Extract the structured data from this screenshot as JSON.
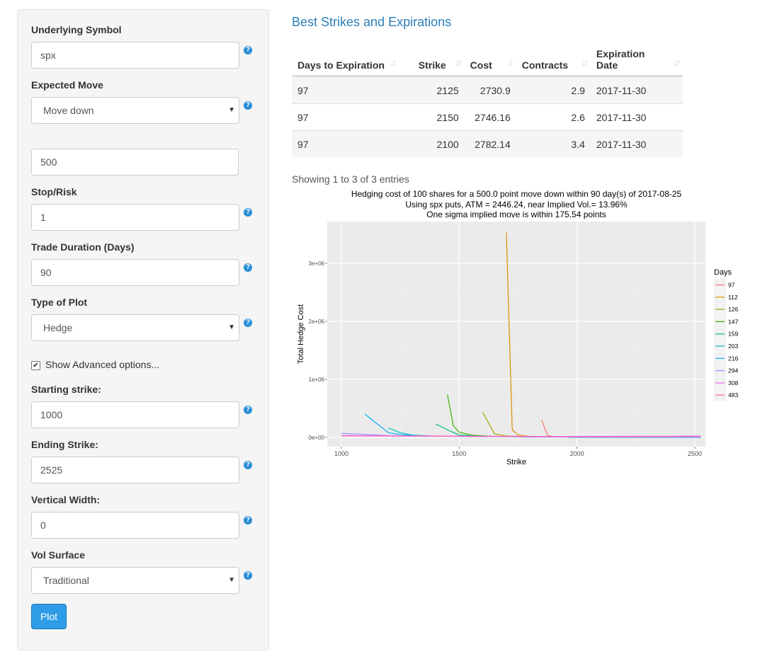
{
  "sidebar": {
    "underlying_symbol": {
      "label": "Underlying Symbol",
      "value": "spx"
    },
    "expected_move": {
      "label": "Expected Move",
      "value": "Move down"
    },
    "move_amount": {
      "value": "500"
    },
    "stop_risk": {
      "label": "Stop/Risk",
      "value": "1"
    },
    "trade_duration": {
      "label": "Trade Duration (Days)",
      "value": "90"
    },
    "plot_type": {
      "label": "Type of Plot",
      "value": "Hedge"
    },
    "advanced": {
      "label": "Show Advanced options...",
      "checked": true
    },
    "starting_strike": {
      "label": "Starting strike:",
      "value": "1000"
    },
    "ending_strike": {
      "label": "Ending Strike:",
      "value": "2525"
    },
    "vertical_width": {
      "label": "Vertical Width:",
      "value": "0"
    },
    "vol_surface": {
      "label": "Vol Surface",
      "value": "Traditional"
    },
    "plot_button": "Plot",
    "help_glyph": "?"
  },
  "main": {
    "heading": "Best Strikes and Expirations",
    "table": {
      "headers": [
        "Days to Expiration",
        "Strike",
        "Cost",
        "Contracts",
        "Expiration Date"
      ],
      "rows": [
        [
          "97",
          "2125",
          "2730.9",
          "2.9",
          "2017-11-30"
        ],
        [
          "97",
          "2150",
          "2746.16",
          "2.6",
          "2017-11-30"
        ],
        [
          "97",
          "2100",
          "2782.14",
          "3.4",
          "2017-11-30"
        ]
      ]
    },
    "info": "Showing 1 to 3 of 3 entries"
  },
  "chart_data": {
    "type": "line",
    "title": "Hedging cost of 100 shares for a 500.0 point move down within 90 day(s) of 2017-08-25",
    "subtitle": "Using spx puts, ATM = 2446.24, near Implied Vol.= 13.96%",
    "subtitle2": "One sigma implied move is within 175.54 points",
    "xlabel": "Strike",
    "ylabel": "Total Hedge Cost",
    "xlim": [
      940,
      2545
    ],
    "ylim": [
      -160000,
      3720000
    ],
    "x_ticks": [
      1000,
      1500,
      2000,
      2500
    ],
    "y_ticks": [
      0,
      1000000,
      2000000,
      3000000
    ],
    "y_tick_labels": [
      "0e+00",
      "1e+06",
      "2e+06",
      "3e+06"
    ],
    "legend_title": "Days",
    "legend_position": "right",
    "grid": true,
    "series": [
      {
        "name": "97",
        "color": "#f8766d",
        "x": [
          1850,
          1875,
          1900,
          2000,
          2525
        ],
        "y": [
          300000,
          30000,
          15000,
          5000,
          2000
        ]
      },
      {
        "name": "112",
        "color": "#d89000",
        "x": [
          1700,
          1725,
          1750,
          1800,
          2000,
          2525
        ],
        "y": [
          3530000,
          130000,
          40000,
          15000,
          5000,
          2000
        ]
      },
      {
        "name": "126",
        "color": "#a3a500",
        "x": [
          1600,
          1650,
          1700,
          1800,
          2000,
          2525
        ],
        "y": [
          430000,
          60000,
          25000,
          10000,
          5000,
          2000
        ]
      },
      {
        "name": "147",
        "color": "#39b600",
        "x": [
          1450,
          1475,
          1500,
          1550,
          1650,
          2000,
          2525
        ],
        "y": [
          740000,
          200000,
          90000,
          40000,
          15000,
          5000,
          2000
        ]
      },
      {
        "name": "159",
        "color": "#00bf7d",
        "x": [
          1400,
          1450,
          1500,
          1600,
          2000,
          2525
        ],
        "y": [
          230000,
          130000,
          40000,
          15000,
          5000,
          2000
        ]
      },
      {
        "name": "203",
        "color": "#00bfc4",
        "x": [
          1200,
          1250,
          1300,
          1400,
          2000,
          2525
        ],
        "y": [
          160000,
          80000,
          40000,
          20000,
          5000,
          2000
        ]
      },
      {
        "name": "216",
        "color": "#00b0f6",
        "x": [
          1100,
          1200,
          1250,
          1350,
          2000,
          2525
        ],
        "y": [
          400000,
          80000,
          50000,
          20000,
          5000,
          2000
        ]
      },
      {
        "name": "294",
        "color": "#9590ff",
        "x": [
          1000,
          1200,
          1500,
          2000,
          2525
        ],
        "y": [
          70000,
          30000,
          15000,
          5000,
          2000
        ]
      },
      {
        "name": "308",
        "color": "#e76bf3",
        "x": [
          1000,
          1500,
          2000,
          2525
        ],
        "y": [
          30000,
          20000,
          12000,
          18000
        ]
      },
      {
        "name": "483",
        "color": "#ff62bc",
        "x": [
          1000,
          1500,
          2000,
          2525
        ],
        "y": [
          25000,
          18000,
          15000,
          20000
        ]
      }
    ]
  }
}
